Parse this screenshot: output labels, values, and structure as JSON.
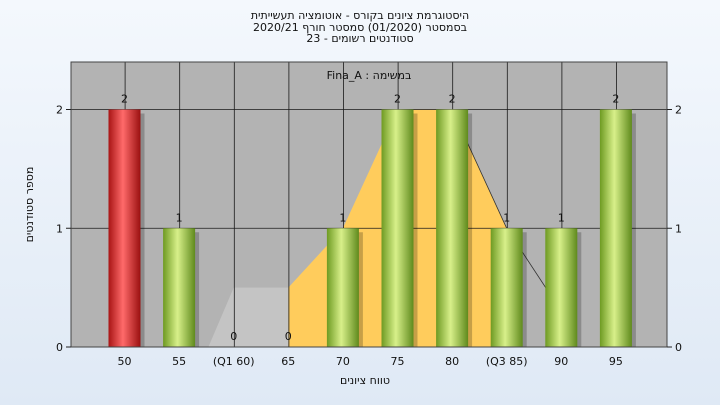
{
  "header": {
    "title1": "היסטוגרמת ציונים בקורס - אוטומציה תעשייתית",
    "title2": "בסמסטר  (01/2020)  סמסטר חורף  2020/21",
    "title3": "סטודנטים רשומים - 23"
  },
  "chart_data": {
    "type": "bar",
    "task_label": "Fina_A : במשימה",
    "xlabel": "טווח ציונים",
    "ylabel": "מספר סטודנטים",
    "ylim": [
      0,
      2.4
    ],
    "yticks": [
      0,
      1,
      2
    ],
    "categories": [
      "50",
      "55",
      "(Q1 60)",
      "65",
      "70",
      "75",
      "80",
      "(Q3 85)",
      "90",
      "95"
    ],
    "series": [
      {
        "values": [
          2,
          1,
          0,
          0,
          1,
          2,
          2,
          1,
          1,
          2
        ],
        "colors": [
          "red",
          "green",
          "green",
          "green",
          "green",
          "green",
          "green",
          "green",
          "green",
          "green"
        ]
      }
    ],
    "box_overlay": {
      "interquartile_fill": "#ffcc5c",
      "outside_fill": "#c4c4c4",
      "points": [
        [
          60,
          0.5
        ],
        [
          65,
          0.5
        ],
        [
          70,
          1
        ],
        [
          75,
          2
        ],
        [
          80,
          2
        ],
        [
          85,
          1
        ],
        [
          90,
          0.3
        ]
      ]
    },
    "colors": {
      "plot_bg": "#b3b3b3",
      "grid": "#1a1a1a",
      "green": "#8fbf3a",
      "red": "#e02828"
    },
    "grid": true
  }
}
